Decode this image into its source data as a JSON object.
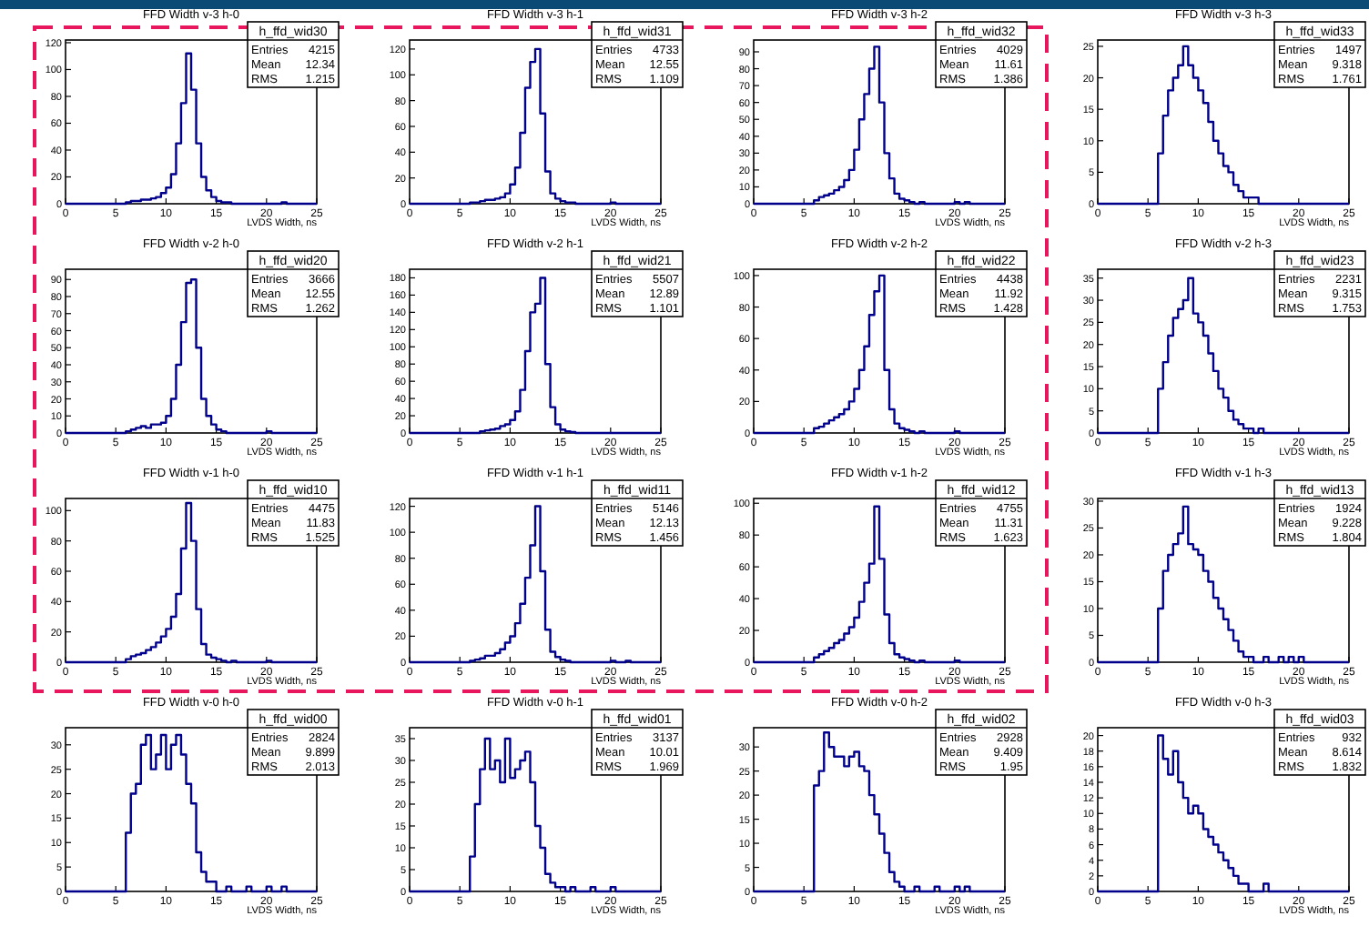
{
  "chart_data": [
    {
      "type": "histogram",
      "title": "FFD Width v-3 h-0",
      "xlabel": "LVDS Width, ns",
      "color": "#00008b",
      "xlim": [
        0,
        25
      ],
      "xticks": [
        0,
        5,
        10,
        15,
        20,
        25
      ],
      "ylim": [
        0,
        122
      ],
      "yticks": [
        0,
        20,
        40,
        60,
        80,
        100,
        120
      ],
      "annotations": [
        "h_ffd_wid30",
        "Entries",
        "4215",
        "Mean",
        "12.34",
        "RMS",
        "1.215"
      ],
      "bins": [
        0,
        0.5,
        1,
        1.5,
        2,
        2.5,
        3,
        3.5,
        4,
        4.5,
        5,
        5.5,
        6,
        6.5,
        7,
        7.5,
        8,
        8.5,
        9,
        9.5,
        10,
        10.5,
        11,
        11.5,
        12,
        12.5,
        13,
        13.5,
        14,
        14.5,
        15,
        15.5,
        16,
        16.5,
        17,
        17.5,
        18,
        18.5,
        19,
        19.5,
        20,
        20.5,
        21,
        21.5,
        22,
        22.5,
        23,
        23.5,
        24,
        24.5,
        25
      ],
      "values": [
        0,
        0,
        0,
        0,
        0,
        0,
        0,
        0,
        0,
        0,
        0,
        0,
        1,
        2,
        2,
        3,
        3,
        4,
        5,
        8,
        12,
        22,
        45,
        75,
        112,
        85,
        45,
        20,
        10,
        5,
        2,
        1,
        1,
        0,
        0,
        0,
        0,
        0,
        0,
        0,
        0,
        0,
        0,
        1,
        0,
        0,
        0,
        0,
        0,
        0
      ]
    },
    {
      "type": "histogram",
      "title": "FFD Width v-3 h-1",
      "xlabel": "LVDS Width, ns",
      "color": "#00008b",
      "xlim": [
        0,
        25
      ],
      "xticks": [
        0,
        5,
        10,
        15,
        20,
        25
      ],
      "ylim": [
        0,
        127
      ],
      "yticks": [
        0,
        20,
        40,
        60,
        80,
        100,
        120
      ],
      "annotations": [
        "h_ffd_wid31",
        "Entries",
        "4733",
        "Mean",
        "12.55",
        "RMS",
        "1.109"
      ],
      "bins": [
        0,
        0.5,
        1,
        1.5,
        2,
        2.5,
        3,
        3.5,
        4,
        4.5,
        5,
        5.5,
        6,
        6.5,
        7,
        7.5,
        8,
        8.5,
        9,
        9.5,
        10,
        10.5,
        11,
        11.5,
        12,
        12.5,
        13,
        13.5,
        14,
        14.5,
        15,
        15.5,
        16,
        16.5,
        17,
        17.5,
        18,
        18.5,
        19,
        19.5,
        20,
        20.5,
        21,
        21.5,
        22,
        22.5,
        23,
        23.5,
        24,
        24.5,
        25
      ],
      "values": [
        0,
        0,
        0,
        0,
        0,
        0,
        0,
        0,
        0,
        0,
        0,
        0,
        1,
        1,
        2,
        3,
        3,
        4,
        5,
        8,
        15,
        28,
        55,
        90,
        110,
        120,
        70,
        25,
        8,
        4,
        2,
        1,
        1,
        0,
        0,
        0,
        0,
        0,
        0,
        0,
        1,
        0,
        0,
        0,
        0,
        0,
        0,
        0,
        0,
        0
      ]
    },
    {
      "type": "histogram",
      "title": "FFD Width v-3 h-2",
      "xlabel": "LVDS Width, ns",
      "color": "#00008b",
      "xlim": [
        0,
        25
      ],
      "xticks": [
        0,
        5,
        10,
        15,
        20,
        25
      ],
      "ylim": [
        0,
        97
      ],
      "yticks": [
        0,
        10,
        20,
        30,
        40,
        50,
        60,
        70,
        80,
        90
      ],
      "annotations": [
        "h_ffd_wid32",
        "Entries",
        "4029",
        "Mean",
        "11.61",
        "RMS",
        "1.386"
      ],
      "bins": [
        0,
        0.5,
        1,
        1.5,
        2,
        2.5,
        3,
        3.5,
        4,
        4.5,
        5,
        5.5,
        6,
        6.5,
        7,
        7.5,
        8,
        8.5,
        9,
        9.5,
        10,
        10.5,
        11,
        11.5,
        12,
        12.5,
        13,
        13.5,
        14,
        14.5,
        15,
        15.5,
        16,
        16.5,
        17,
        17.5,
        18,
        18.5,
        19,
        19.5,
        20,
        20.5,
        21,
        21.5,
        22,
        22.5,
        23,
        23.5,
        24,
        24.5,
        25
      ],
      "values": [
        0,
        0,
        0,
        0,
        0,
        0,
        0,
        0,
        0,
        0,
        0,
        0,
        2,
        4,
        5,
        6,
        8,
        10,
        14,
        20,
        32,
        50,
        65,
        80,
        93,
        60,
        30,
        15,
        6,
        3,
        2,
        1,
        0,
        1,
        0,
        0,
        0,
        0,
        0,
        0,
        1,
        0,
        1,
        0,
        0,
        0,
        0,
        0,
        0,
        0
      ]
    },
    {
      "type": "histogram",
      "title": "FFD Width v-3 h-3",
      "xlabel": "LVDS Width, ns",
      "color": "#00008b",
      "xlim": [
        0,
        25
      ],
      "xticks": [
        0,
        5,
        10,
        15,
        20,
        25
      ],
      "ylim": [
        0,
        26
      ],
      "yticks": [
        0,
        5,
        10,
        15,
        20,
        25
      ],
      "annotations": [
        "h_ffd_wid33",
        "Entries",
        "1497",
        "Mean",
        "9.318",
        "RMS",
        "1.761"
      ],
      "bins": [
        0,
        0.5,
        1,
        1.5,
        2,
        2.5,
        3,
        3.5,
        4,
        4.5,
        5,
        5.5,
        6,
        6.5,
        7,
        7.5,
        8,
        8.5,
        9,
        9.5,
        10,
        10.5,
        11,
        11.5,
        12,
        12.5,
        13,
        13.5,
        14,
        14.5,
        15,
        15.5,
        16,
        16.5,
        17,
        17.5,
        18,
        18.5,
        19,
        19.5,
        20,
        20.5,
        21,
        21.5,
        22,
        22.5,
        23,
        23.5,
        24,
        24.5,
        25
      ],
      "values": [
        0,
        0,
        0,
        0,
        0,
        0,
        0,
        0,
        0,
        0,
        0,
        0,
        8,
        14,
        18,
        20,
        22,
        25,
        22,
        20,
        18,
        16,
        13,
        10,
        8,
        6,
        5,
        3,
        2,
        1,
        1,
        1,
        0,
        0,
        0,
        0,
        0,
        0,
        0,
        0,
        0,
        0,
        0,
        0,
        0,
        0,
        0,
        0,
        0,
        0
      ]
    },
    {
      "type": "histogram",
      "title": "FFD Width v-2 h-0",
      "xlabel": "LVDS Width, ns",
      "color": "#00008b",
      "xlim": [
        0,
        25
      ],
      "xticks": [
        0,
        5,
        10,
        15,
        20,
        25
      ],
      "ylim": [
        0,
        96
      ],
      "yticks": [
        0,
        10,
        20,
        30,
        40,
        50,
        60,
        70,
        80,
        90
      ],
      "annotations": [
        "h_ffd_wid20",
        "Entries",
        "3666",
        "Mean",
        "12.55",
        "RMS",
        "1.262"
      ],
      "bins": [
        0,
        0.5,
        1,
        1.5,
        2,
        2.5,
        3,
        3.5,
        4,
        4.5,
        5,
        5.5,
        6,
        6.5,
        7,
        7.5,
        8,
        8.5,
        9,
        9.5,
        10,
        10.5,
        11,
        11.5,
        12,
        12.5,
        13,
        13.5,
        14,
        14.5,
        15,
        15.5,
        16,
        16.5,
        17,
        17.5,
        18,
        18.5,
        19,
        19.5,
        20,
        20.5,
        21,
        21.5,
        22,
        22.5,
        23,
        23.5,
        24,
        24.5,
        25
      ],
      "values": [
        0,
        0,
        0,
        0,
        0,
        0,
        0,
        0,
        0,
        0,
        0,
        0,
        1,
        2,
        3,
        4,
        3,
        5,
        5,
        6,
        10,
        20,
        40,
        65,
        88,
        90,
        50,
        20,
        10,
        5,
        2,
        1,
        0,
        0,
        0,
        0,
        0,
        0,
        0,
        0,
        1,
        0,
        0,
        0,
        0,
        0,
        0,
        0,
        0,
        0
      ]
    },
    {
      "type": "histogram",
      "title": "FFD Width v-2 h-1",
      "xlabel": "LVDS Width, ns",
      "color": "#00008b",
      "xlim": [
        0,
        25
      ],
      "xticks": [
        0,
        5,
        10,
        15,
        20,
        25
      ],
      "ylim": [
        0,
        190
      ],
      "yticks": [
        0,
        20,
        40,
        60,
        80,
        100,
        120,
        140,
        160,
        180
      ],
      "annotations": [
        "h_ffd_wid21",
        "Entries",
        "5507",
        "Mean",
        "12.89",
        "RMS",
        "1.101"
      ],
      "bins": [
        0,
        0.5,
        1,
        1.5,
        2,
        2.5,
        3,
        3.5,
        4,
        4.5,
        5,
        5.5,
        6,
        6.5,
        7,
        7.5,
        8,
        8.5,
        9,
        9.5,
        10,
        10.5,
        11,
        11.5,
        12,
        12.5,
        13,
        13.5,
        14,
        14.5,
        15,
        15.5,
        16,
        16.5,
        17,
        17.5,
        18,
        18.5,
        19,
        19.5,
        20,
        20.5,
        21,
        21.5,
        22,
        22.5,
        23,
        23.5,
        24,
        24.5,
        25
      ],
      "values": [
        0,
        0,
        0,
        0,
        0,
        0,
        0,
        0,
        0,
        0,
        0,
        0,
        0,
        0,
        2,
        3,
        4,
        5,
        8,
        10,
        15,
        25,
        50,
        95,
        140,
        150,
        180,
        80,
        30,
        10,
        4,
        2,
        1,
        0,
        0,
        0,
        0,
        0,
        0,
        0,
        0,
        0,
        0,
        0,
        0,
        0,
        0,
        0,
        0,
        0
      ]
    },
    {
      "type": "histogram",
      "title": "FFD Width v-2 h-2",
      "xlabel": "LVDS Width, ns",
      "color": "#00008b",
      "xlim": [
        0,
        25
      ],
      "xticks": [
        0,
        5,
        10,
        15,
        20,
        25
      ],
      "ylim": [
        0,
        104
      ],
      "yticks": [
        0,
        20,
        40,
        60,
        80,
        100
      ],
      "annotations": [
        "h_ffd_wid22",
        "Entries",
        "4438",
        "Mean",
        "11.92",
        "RMS",
        "1.428"
      ],
      "bins": [
        0,
        0.5,
        1,
        1.5,
        2,
        2.5,
        3,
        3.5,
        4,
        4.5,
        5,
        5.5,
        6,
        6.5,
        7,
        7.5,
        8,
        8.5,
        9,
        9.5,
        10,
        10.5,
        11,
        11.5,
        12,
        12.5,
        13,
        13.5,
        14,
        14.5,
        15,
        15.5,
        16,
        16.5,
        17,
        17.5,
        18,
        18.5,
        19,
        19.5,
        20,
        20.5,
        21,
        21.5,
        22,
        22.5,
        23,
        23.5,
        24,
        24.5,
        25
      ],
      "values": [
        0,
        0,
        0,
        0,
        0,
        0,
        0,
        0,
        0,
        0,
        0,
        0,
        3,
        4,
        6,
        8,
        10,
        12,
        15,
        20,
        28,
        40,
        55,
        75,
        90,
        100,
        40,
        15,
        6,
        3,
        2,
        1,
        0,
        1,
        0,
        0,
        0,
        0,
        0,
        0,
        1,
        0,
        0,
        0,
        0,
        0,
        0,
        0,
        0,
        0
      ]
    },
    {
      "type": "histogram",
      "title": "FFD Width v-2 h-3",
      "xlabel": "LVDS Width, ns",
      "color": "#00008b",
      "xlim": [
        0,
        25
      ],
      "xticks": [
        0,
        5,
        10,
        15,
        20,
        25
      ],
      "ylim": [
        0,
        37
      ],
      "yticks": [
        0,
        5,
        10,
        15,
        20,
        25,
        30,
        35
      ],
      "annotations": [
        "h_ffd_wid23",
        "Entries",
        "2231",
        "Mean",
        "9.315",
        "RMS",
        "1.753"
      ],
      "bins": [
        0,
        0.5,
        1,
        1.5,
        2,
        2.5,
        3,
        3.5,
        4,
        4.5,
        5,
        5.5,
        6,
        6.5,
        7,
        7.5,
        8,
        8.5,
        9,
        9.5,
        10,
        10.5,
        11,
        11.5,
        12,
        12.5,
        13,
        13.5,
        14,
        14.5,
        15,
        15.5,
        16,
        16.5,
        17,
        17.5,
        18,
        18.5,
        19,
        19.5,
        20,
        20.5,
        21,
        21.5,
        22,
        22.5,
        23,
        23.5,
        24,
        24.5,
        25
      ],
      "values": [
        0,
        0,
        0,
        0,
        0,
        0,
        0,
        0,
        0,
        0,
        0,
        0,
        10,
        16,
        22,
        26,
        28,
        30,
        35,
        27,
        25,
        22,
        18,
        14,
        10,
        8,
        5,
        3,
        2,
        1,
        1,
        0,
        1,
        0,
        0,
        0,
        0,
        0,
        0,
        0,
        0,
        0,
        0,
        0,
        0,
        0,
        0,
        0,
        0,
        0
      ]
    },
    {
      "type": "histogram",
      "title": "FFD Width v-1 h-0",
      "xlabel": "LVDS Width, ns",
      "color": "#00008b",
      "xlim": [
        0,
        25
      ],
      "xticks": [
        0,
        5,
        10,
        15,
        20,
        25
      ],
      "ylim": [
        0,
        108
      ],
      "yticks": [
        0,
        20,
        40,
        60,
        80,
        100
      ],
      "annotations": [
        "h_ffd_wid10",
        "Entries",
        "4475",
        "Mean",
        "11.83",
        "RMS",
        "1.525"
      ],
      "bins": [
        0,
        0.5,
        1,
        1.5,
        2,
        2.5,
        3,
        3.5,
        4,
        4.5,
        5,
        5.5,
        6,
        6.5,
        7,
        7.5,
        8,
        8.5,
        9,
        9.5,
        10,
        10.5,
        11,
        11.5,
        12,
        12.5,
        13,
        13.5,
        14,
        14.5,
        15,
        15.5,
        16,
        16.5,
        17,
        17.5,
        18,
        18.5,
        19,
        19.5,
        20,
        20.5,
        21,
        21.5,
        22,
        22.5,
        23,
        23.5,
        24,
        24.5,
        25
      ],
      "values": [
        0,
        0,
        0,
        0,
        0,
        0,
        0,
        0,
        0,
        0,
        0,
        0,
        2,
        4,
        5,
        6,
        8,
        10,
        13,
        17,
        22,
        30,
        45,
        75,
        105,
        80,
        35,
        12,
        5,
        3,
        2,
        1,
        0,
        1,
        0,
        0,
        0,
        0,
        0,
        0,
        1,
        0,
        0,
        0,
        0,
        0,
        0,
        0,
        0,
        0
      ]
    },
    {
      "type": "histogram",
      "title": "FFD Width v-1 h-1",
      "xlabel": "LVDS Width, ns",
      "color": "#00008b",
      "xlim": [
        0,
        25
      ],
      "xticks": [
        0,
        5,
        10,
        15,
        20,
        25
      ],
      "ylim": [
        0,
        126
      ],
      "yticks": [
        0,
        20,
        40,
        60,
        80,
        100,
        120
      ],
      "annotations": [
        "h_ffd_wid11",
        "Entries",
        "5146",
        "Mean",
        "12.13",
        "RMS",
        "1.456"
      ],
      "bins": [
        0,
        0.5,
        1,
        1.5,
        2,
        2.5,
        3,
        3.5,
        4,
        4.5,
        5,
        5.5,
        6,
        6.5,
        7,
        7.5,
        8,
        8.5,
        9,
        9.5,
        10,
        10.5,
        11,
        11.5,
        12,
        12.5,
        13,
        13.5,
        14,
        14.5,
        15,
        15.5,
        16,
        16.5,
        17,
        17.5,
        18,
        18.5,
        19,
        19.5,
        20,
        20.5,
        21,
        21.5,
        22,
        22.5,
        23,
        23.5,
        24,
        24.5,
        25
      ],
      "values": [
        0,
        0,
        0,
        0,
        0,
        0,
        0,
        0,
        0,
        0,
        0,
        0,
        1,
        2,
        3,
        5,
        5,
        7,
        10,
        15,
        20,
        30,
        45,
        65,
        90,
        120,
        70,
        25,
        8,
        4,
        2,
        1,
        0,
        0,
        0,
        0,
        0,
        0,
        0,
        0,
        1,
        0,
        0,
        1,
        0,
        0,
        0,
        0,
        0,
        0
      ]
    },
    {
      "type": "histogram",
      "title": "FFD Width v-1 h-2",
      "xlabel": "LVDS Width, ns",
      "color": "#00008b",
      "xlim": [
        0,
        25
      ],
      "xticks": [
        0,
        5,
        10,
        15,
        20,
        25
      ],
      "ylim": [
        0,
        103
      ],
      "yticks": [
        0,
        20,
        40,
        60,
        80,
        100
      ],
      "annotations": [
        "h_ffd_wid12",
        "Entries",
        "4755",
        "Mean",
        "11.31",
        "RMS",
        "1.623"
      ],
      "bins": [
        0,
        0.5,
        1,
        1.5,
        2,
        2.5,
        3,
        3.5,
        4,
        4.5,
        5,
        5.5,
        6,
        6.5,
        7,
        7.5,
        8,
        8.5,
        9,
        9.5,
        10,
        10.5,
        11,
        11.5,
        12,
        12.5,
        13,
        13.5,
        14,
        14.5,
        15,
        15.5,
        16,
        16.5,
        17,
        17.5,
        18,
        18.5,
        19,
        19.5,
        20,
        20.5,
        21,
        21.5,
        22,
        22.5,
        23,
        23.5,
        24,
        24.5,
        25
      ],
      "values": [
        0,
        0,
        0,
        0,
        0,
        0,
        0,
        0,
        0,
        0,
        0,
        0,
        3,
        5,
        7,
        9,
        12,
        14,
        18,
        22,
        28,
        38,
        50,
        62,
        98,
        65,
        30,
        12,
        5,
        3,
        2,
        1,
        0,
        1,
        0,
        0,
        0,
        0,
        0,
        0,
        1,
        0,
        0,
        0,
        0,
        0,
        0,
        0,
        0,
        0
      ]
    },
    {
      "type": "histogram",
      "title": "FFD Width v-1 h-3",
      "xlabel": "LVDS Width, ns",
      "color": "#00008b",
      "xlim": [
        0,
        25
      ],
      "xticks": [
        0,
        5,
        10,
        15,
        20,
        25
      ],
      "ylim": [
        0,
        30.5
      ],
      "yticks": [
        0,
        5,
        10,
        15,
        20,
        25,
        30
      ],
      "annotations": [
        "h_ffd_wid13",
        "Entries",
        "1924",
        "Mean",
        "9.228",
        "RMS",
        "1.804"
      ],
      "bins": [
        0,
        0.5,
        1,
        1.5,
        2,
        2.5,
        3,
        3.5,
        4,
        4.5,
        5,
        5.5,
        6,
        6.5,
        7,
        7.5,
        8,
        8.5,
        9,
        9.5,
        10,
        10.5,
        11,
        11.5,
        12,
        12.5,
        13,
        13.5,
        14,
        14.5,
        15,
        15.5,
        16,
        16.5,
        17,
        17.5,
        18,
        18.5,
        19,
        19.5,
        20,
        20.5,
        21,
        21.5,
        22,
        22.5,
        23,
        23.5,
        24,
        24.5,
        25
      ],
      "values": [
        0,
        0,
        0,
        0,
        0,
        0,
        0,
        0,
        0,
        0,
        0,
        0,
        10,
        17,
        20,
        22,
        24,
        29,
        22,
        21,
        20,
        17,
        15,
        12,
        10,
        8,
        6,
        4,
        2,
        1,
        1,
        0,
        0,
        1,
        0,
        0,
        1,
        0,
        1,
        0,
        1,
        0,
        0,
        0,
        0,
        0,
        0,
        0,
        0,
        0
      ]
    },
    {
      "type": "histogram",
      "title": "FFD Width v-0 h-0",
      "xlabel": "LVDS Width, ns",
      "color": "#00008b",
      "xlim": [
        0,
        25
      ],
      "xticks": [
        0,
        5,
        10,
        15,
        20,
        25
      ],
      "ylim": [
        0,
        33.5
      ],
      "yticks": [
        0,
        5,
        10,
        15,
        20,
        25,
        30
      ],
      "annotations": [
        "h_ffd_wid00",
        "Entries",
        "2824",
        "Mean",
        "9.899",
        "RMS",
        "2.013"
      ],
      "bins": [
        0,
        0.5,
        1,
        1.5,
        2,
        2.5,
        3,
        3.5,
        4,
        4.5,
        5,
        5.5,
        6,
        6.5,
        7,
        7.5,
        8,
        8.5,
        9,
        9.5,
        10,
        10.5,
        11,
        11.5,
        12,
        12.5,
        13,
        13.5,
        14,
        14.5,
        15,
        15.5,
        16,
        16.5,
        17,
        17.5,
        18,
        18.5,
        19,
        19.5,
        20,
        20.5,
        21,
        21.5,
        22,
        22.5,
        23,
        23.5,
        24,
        24.5,
        25
      ],
      "values": [
        0,
        0,
        0,
        0,
        0,
        0,
        0,
        0,
        0,
        0,
        0,
        0,
        12,
        20,
        22,
        30,
        32,
        25,
        28,
        32,
        25,
        30,
        32,
        28,
        22,
        18,
        8,
        4,
        2,
        2,
        0,
        0,
        1,
        0,
        0,
        0,
        1,
        0,
        0,
        0,
        1,
        0,
        0,
        1,
        0,
        0,
        0,
        0,
        0,
        0
      ]
    },
    {
      "type": "histogram",
      "title": "FFD Width v-0 h-1",
      "xlabel": "LVDS Width, ns",
      "color": "#00008b",
      "xlim": [
        0,
        25
      ],
      "xticks": [
        0,
        5,
        10,
        15,
        20,
        25
      ],
      "ylim": [
        0,
        37.5
      ],
      "yticks": [
        0,
        5,
        10,
        15,
        20,
        25,
        30,
        35
      ],
      "annotations": [
        "h_ffd_wid01",
        "Entries",
        "3137",
        "Mean",
        "10.01",
        "RMS",
        "1.969"
      ],
      "bins": [
        0,
        0.5,
        1,
        1.5,
        2,
        2.5,
        3,
        3.5,
        4,
        4.5,
        5,
        5.5,
        6,
        6.5,
        7,
        7.5,
        8,
        8.5,
        9,
        9.5,
        10,
        10.5,
        11,
        11.5,
        12,
        12.5,
        13,
        13.5,
        14,
        14.5,
        15,
        15.5,
        16,
        16.5,
        17,
        17.5,
        18,
        18.5,
        19,
        19.5,
        20,
        20.5,
        21,
        21.5,
        22,
        22.5,
        23,
        23.5,
        24,
        24.5,
        25
      ],
      "values": [
        0,
        0,
        0,
        0,
        0,
        0,
        0,
        0,
        0,
        0,
        0,
        0,
        8,
        20,
        28,
        35,
        28,
        30,
        25,
        35,
        26,
        28,
        30,
        32,
        25,
        15,
        10,
        4,
        2,
        1,
        1,
        0,
        1,
        0,
        0,
        0,
        1,
        0,
        0,
        0,
        1,
        0,
        0,
        0,
        0,
        0,
        0,
        0,
        0,
        0
      ]
    },
    {
      "type": "histogram",
      "title": "FFD Width v-0 h-2",
      "xlabel": "LVDS Width, ns",
      "color": "#00008b",
      "xlim": [
        0,
        25
      ],
      "xticks": [
        0,
        5,
        10,
        15,
        20,
        25
      ],
      "ylim": [
        0,
        34
      ],
      "yticks": [
        0,
        5,
        10,
        15,
        20,
        25,
        30
      ],
      "annotations": [
        "h_ffd_wid02",
        "Entries",
        "2928",
        "Mean",
        "9.409",
        "RMS",
        "1.95"
      ],
      "bins": [
        0,
        0.5,
        1,
        1.5,
        2,
        2.5,
        3,
        3.5,
        4,
        4.5,
        5,
        5.5,
        6,
        6.5,
        7,
        7.5,
        8,
        8.5,
        9,
        9.5,
        10,
        10.5,
        11,
        11.5,
        12,
        12.5,
        13,
        13.5,
        14,
        14.5,
        15,
        15.5,
        16,
        16.5,
        17,
        17.5,
        18,
        18.5,
        19,
        19.5,
        20,
        20.5,
        21,
        21.5,
        22,
        22.5,
        23,
        23.5,
        24,
        24.5,
        25
      ],
      "values": [
        0,
        0,
        0,
        0,
        0,
        0,
        0,
        0,
        0,
        0,
        0,
        0,
        22,
        25,
        33,
        30,
        28,
        28,
        26,
        28,
        29,
        26,
        25,
        20,
        16,
        12,
        8,
        4,
        2,
        1,
        0,
        0,
        1,
        0,
        0,
        0,
        1,
        0,
        0,
        0,
        1,
        0,
        1,
        0,
        0,
        0,
        0,
        0,
        0,
        0
      ]
    },
    {
      "type": "histogram",
      "title": "FFD Width v-0 h-3",
      "xlabel": "LVDS Width, ns",
      "color": "#00008b",
      "xlim": [
        0,
        25
      ],
      "xticks": [
        0,
        5,
        10,
        15,
        20,
        25
      ],
      "ylim": [
        0,
        21
      ],
      "yticks": [
        0,
        2,
        4,
        6,
        8,
        10,
        12,
        14,
        16,
        18,
        20
      ],
      "annotations": [
        "h_ffd_wid03",
        "Entries",
        "932",
        "Mean",
        "8.614",
        "RMS",
        "1.832"
      ],
      "bins": [
        0,
        0.5,
        1,
        1.5,
        2,
        2.5,
        3,
        3.5,
        4,
        4.5,
        5,
        5.5,
        6,
        6.5,
        7,
        7.5,
        8,
        8.5,
        9,
        9.5,
        10,
        10.5,
        11,
        11.5,
        12,
        12.5,
        13,
        13.5,
        14,
        14.5,
        15,
        15.5,
        16,
        16.5,
        17,
        17.5,
        18,
        18.5,
        19,
        19.5,
        20,
        20.5,
        21,
        21.5,
        22,
        22.5,
        23,
        23.5,
        24,
        24.5,
        25
      ],
      "values": [
        0,
        0,
        0,
        0,
        0,
        0,
        0,
        0,
        0,
        0,
        0,
        0,
        20,
        17,
        15,
        18,
        14,
        12,
        10,
        11,
        10,
        8,
        7,
        6,
        5,
        4,
        3,
        2,
        1,
        1,
        0,
        0,
        0,
        1,
        0,
        0,
        0,
        0,
        0,
        0,
        0,
        0,
        0,
        0,
        0,
        0,
        0,
        0,
        0,
        0
      ]
    }
  ]
}
